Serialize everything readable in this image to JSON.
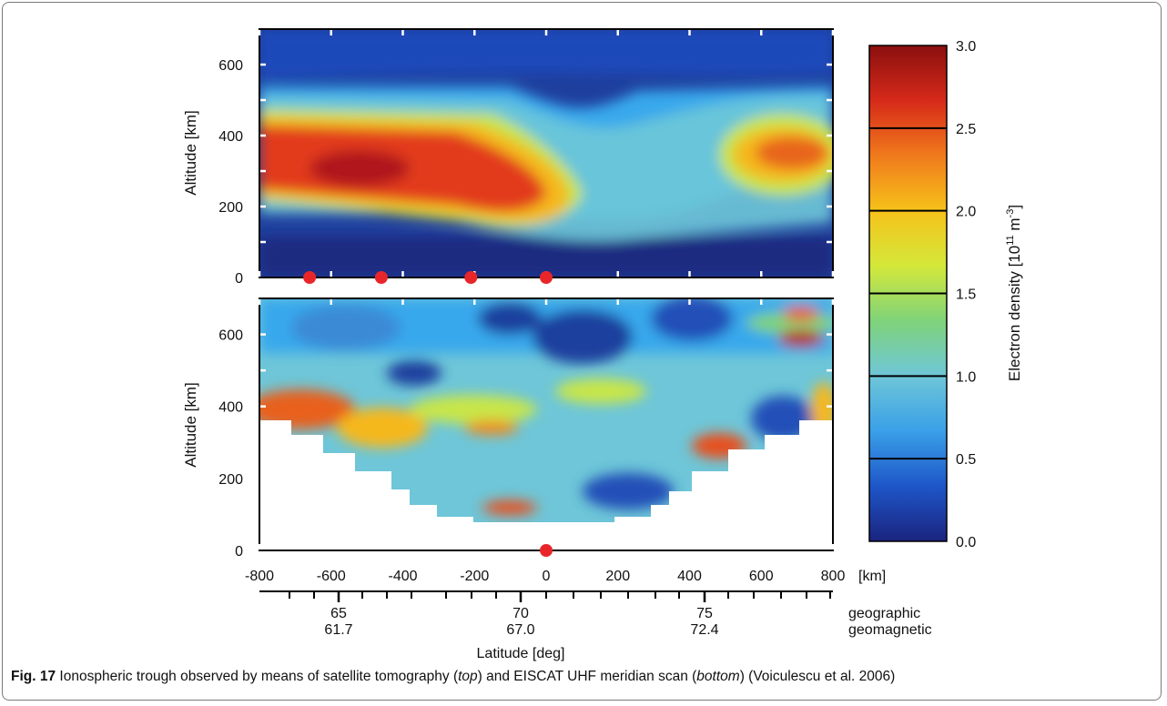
{
  "figure": {
    "number_label": "Fig. 17",
    "caption_parts": [
      " Ionospheric trough observed by means of satellite tomography (",
      "top",
      ") and EISCAT UHF meridian scan (",
      "bottom",
      ") (Voiculescu et al. 2006)"
    ]
  },
  "chart_data": [
    {
      "type": "heatmap",
      "panel": "top",
      "description_source": "satellite tomography",
      "ylabel": "Altitude [km]",
      "ylim": [
        0,
        700
      ],
      "yticks": [
        "0",
        "200",
        "400",
        "600"
      ],
      "xlim": [
        -800,
        800
      ],
      "receiver_markers_km": [
        -660,
        -460,
        -210,
        0
      ],
      "features": [
        {
          "region_km": [
            -800,
            -150
          ],
          "altitude_km": [
            180,
            420
          ],
          "density_1e11": 2.6
        },
        {
          "region_km": [
            -550,
            -450
          ],
          "altitude_km": [
            260,
            320
          ],
          "density_1e11": 3.0
        },
        {
          "region_km": [
            -150,
            400
          ],
          "altitude_km": [
            150,
            600
          ],
          "density_1e11": 1.0
        },
        {
          "region_km": [
            400,
            800
          ],
          "altitude_km": [
            240,
            440
          ],
          "density_1e11": 2.3
        }
      ]
    },
    {
      "type": "heatmap",
      "panel": "bottom",
      "description_source": "EISCAT UHF meridian scan",
      "ylabel": "Altitude [km]",
      "ylim": [
        0,
        700
      ],
      "yticks": [
        "0",
        "200",
        "400",
        "600"
      ],
      "xlim": [
        -800,
        800
      ],
      "xticks": [
        "-800",
        "-600",
        "-400",
        "-200",
        "0",
        "200",
        "400",
        "600",
        "800"
      ],
      "xunit": "[km]",
      "receiver_markers_km": [
        0
      ],
      "features": [
        {
          "region_km": [
            -800,
            -450
          ],
          "altitude_km": [
            300,
            430
          ],
          "density_1e11": 2.4
        },
        {
          "region_km": [
            -100,
            0
          ],
          "altitude_km": [
            90,
            130
          ],
          "density_1e11": 2.8
        },
        {
          "region_km": [
            550,
            650
          ],
          "altitude_km": [
            600,
            660
          ],
          "density_1e11": 2.7
        },
        {
          "region_km": [
            450,
            550
          ],
          "altitude_km": [
            290,
            340
          ],
          "density_1e11": 2.4
        }
      ]
    }
  ],
  "colorbar": {
    "label_main": "Electron density [10",
    "label_sup1": "11",
    "label_mid": " m",
    "label_sup2": "-3",
    "label_end": "]",
    "ticks": [
      "0.0",
      "0.5",
      "1.0",
      "1.5",
      "2.0",
      "2.5",
      "3.0"
    ],
    "range": [
      0.0,
      3.0
    ],
    "colors": [
      "#1a237e",
      "#1e56c8",
      "#3aa0e8",
      "#6ec6d8",
      "#7fd37a",
      "#d4e83a",
      "#f6c21a",
      "#f07a1c",
      "#d62a1a",
      "#8a0f0f"
    ]
  },
  "latitude_axis": {
    "geographic": [
      "65",
      "70",
      "75"
    ],
    "geomagnetic": [
      "61.7",
      "67.0",
      "72.4"
    ],
    "geographic_label": "geographic",
    "geomagnetic_label": "geomagnetic",
    "xlabel": "Latitude [deg]"
  }
}
